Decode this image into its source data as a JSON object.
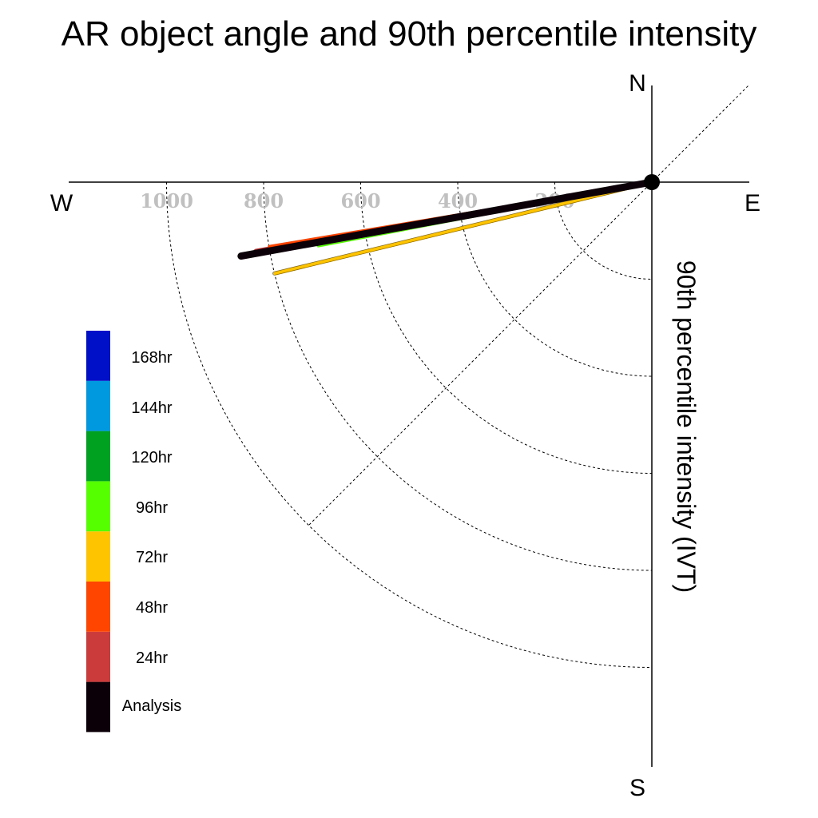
{
  "chart_data": {
    "type": "polar-vector",
    "title": "AR object angle and 90th percentile intensity",
    "ylabel": "90th percentile intensity (IVT)",
    "directions": {
      "north": "N",
      "south": "S",
      "east": "E",
      "west": "W"
    },
    "radial_ticks": [
      "200",
      "400",
      "600",
      "800",
      "1000"
    ],
    "radial_tick_values": [
      200,
      400,
      600,
      800,
      1000
    ],
    "legend": [
      {
        "label": "168hr",
        "color": "#0010c8"
      },
      {
        "label": "144hr",
        "color": "#0099e0"
      },
      {
        "label": "120hr",
        "color": "#00a020"
      },
      {
        "label": "96hr",
        "color": "#55ff00"
      },
      {
        "label": "72hr",
        "color": "#ffc400"
      },
      {
        "label": "48hr",
        "color": "#ff4500"
      },
      {
        "label": "24hr",
        "color": "#cc3b3b"
      },
      {
        "label": "Analysis",
        "color": "#0c0008"
      }
    ],
    "series": [
      {
        "name": "24hr",
        "angle_deg_from_west_toward_south": 9.9,
        "intensity": 828,
        "color": "#cc3b3b",
        "width": 6
      },
      {
        "name": "48hr",
        "angle_deg_from_west_toward_south": 9.5,
        "intensity": 800,
        "color": "#ff4500",
        "width": 3
      },
      {
        "name": "168hr",
        "angle_deg_from_west_toward_south": 10.5,
        "intensity": 600,
        "color": "#0010c8",
        "width": 2.5
      },
      {
        "name": "144hr",
        "angle_deg_from_west_toward_south": 10.6,
        "intensity": 580,
        "color": "#0099e0",
        "width": 2.5
      },
      {
        "name": "120hr",
        "angle_deg_from_west_toward_south": 10.8,
        "intensity": 580,
        "color": "#00a020",
        "width": 2.5
      },
      {
        "name": "96hr",
        "angle_deg_from_west_toward_south": 10.8,
        "intensity": 700,
        "color": "#55ff00",
        "width": 4
      },
      {
        "name": "72hr",
        "angle_deg_from_west_toward_south": 13.6,
        "intensity": 800,
        "color": "#ffc400",
        "width": 3.5
      },
      {
        "name": "Analysis",
        "angle_deg_from_west_toward_south": 10.2,
        "intensity": 860,
        "color": "#0c0008",
        "width": 9
      }
    ]
  }
}
